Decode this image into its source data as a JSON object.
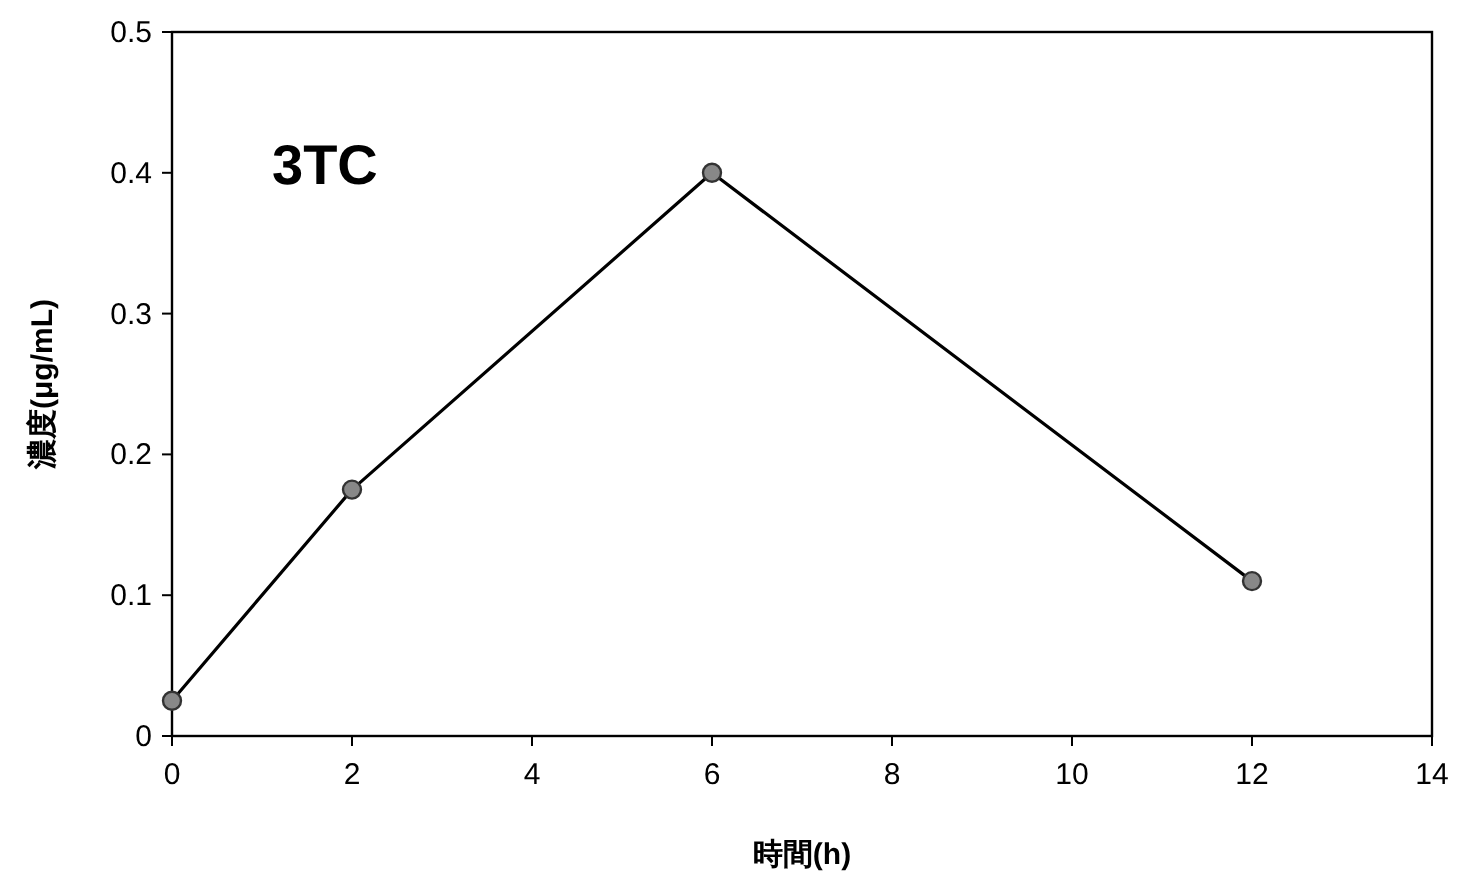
{
  "chart_data": {
    "type": "line",
    "xlabel": "時間(h)",
    "ylabel": "濃度(μg/mL)",
    "annotations": [
      "3TC"
    ],
    "x": [
      0,
      2,
      6,
      12
    ],
    "series": [
      {
        "color": "#000000",
        "values": [
          0.025,
          0.175,
          0.4,
          0.11
        ]
      }
    ],
    "xlim": [
      0,
      14
    ],
    "xticks": [
      0,
      2,
      4,
      6,
      8,
      10,
      12,
      14
    ],
    "ylim": [
      0,
      0.5
    ],
    "yticks": [
      0,
      0.1,
      0.2,
      0.3,
      0.4,
      0.5
    ],
    "marker": "circle",
    "line_style": "solid"
  }
}
